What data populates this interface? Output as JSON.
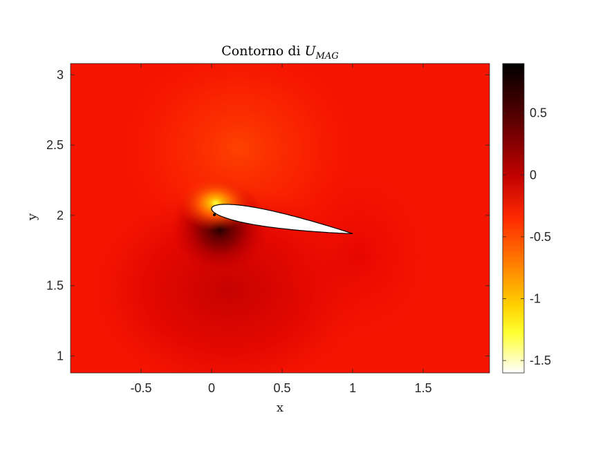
{
  "chart_data": {
    "type": "heatmap",
    "title_main": "Contorno di ",
    "title_symbol": "U",
    "title_subscript": "MAG",
    "xlabel": "x",
    "ylabel": "y",
    "xlim": [
      -1.0,
      1.97
    ],
    "ylim": [
      0.88,
      3.08
    ],
    "xticks": [
      -0.5,
      0,
      0.5,
      1,
      1.5
    ],
    "xtick_labels": [
      "-0.5",
      "0",
      "0.5",
      "1",
      "1.5"
    ],
    "yticks": [
      1,
      1.5,
      2,
      2.5,
      3
    ],
    "ytick_labels": [
      "1",
      "1.5",
      "2",
      "2.5",
      "3"
    ],
    "colorbar": {
      "colormap": "hot",
      "clim": [
        -1.6,
        0.9
      ],
      "ticks": [
        0.5,
        0,
        -0.5,
        -1,
        -1.5
      ],
      "tick_labels": [
        "0.5",
        "0",
        "-0.5",
        "-1",
        "-1.5"
      ],
      "colors": {
        "top": "#000000",
        "dark_red": "#8b0000",
        "red": "#ff1a00",
        "orange": "#ff8000",
        "yellow": "#ffff00",
        "bottom": "#ffffff"
      }
    },
    "airfoil": {
      "leading_edge": [
        0.0,
        2.05
      ],
      "trailing_edge": [
        1.0,
        1.87
      ],
      "fill_color": "#ffffff",
      "edge_color": "#000000"
    }
  }
}
